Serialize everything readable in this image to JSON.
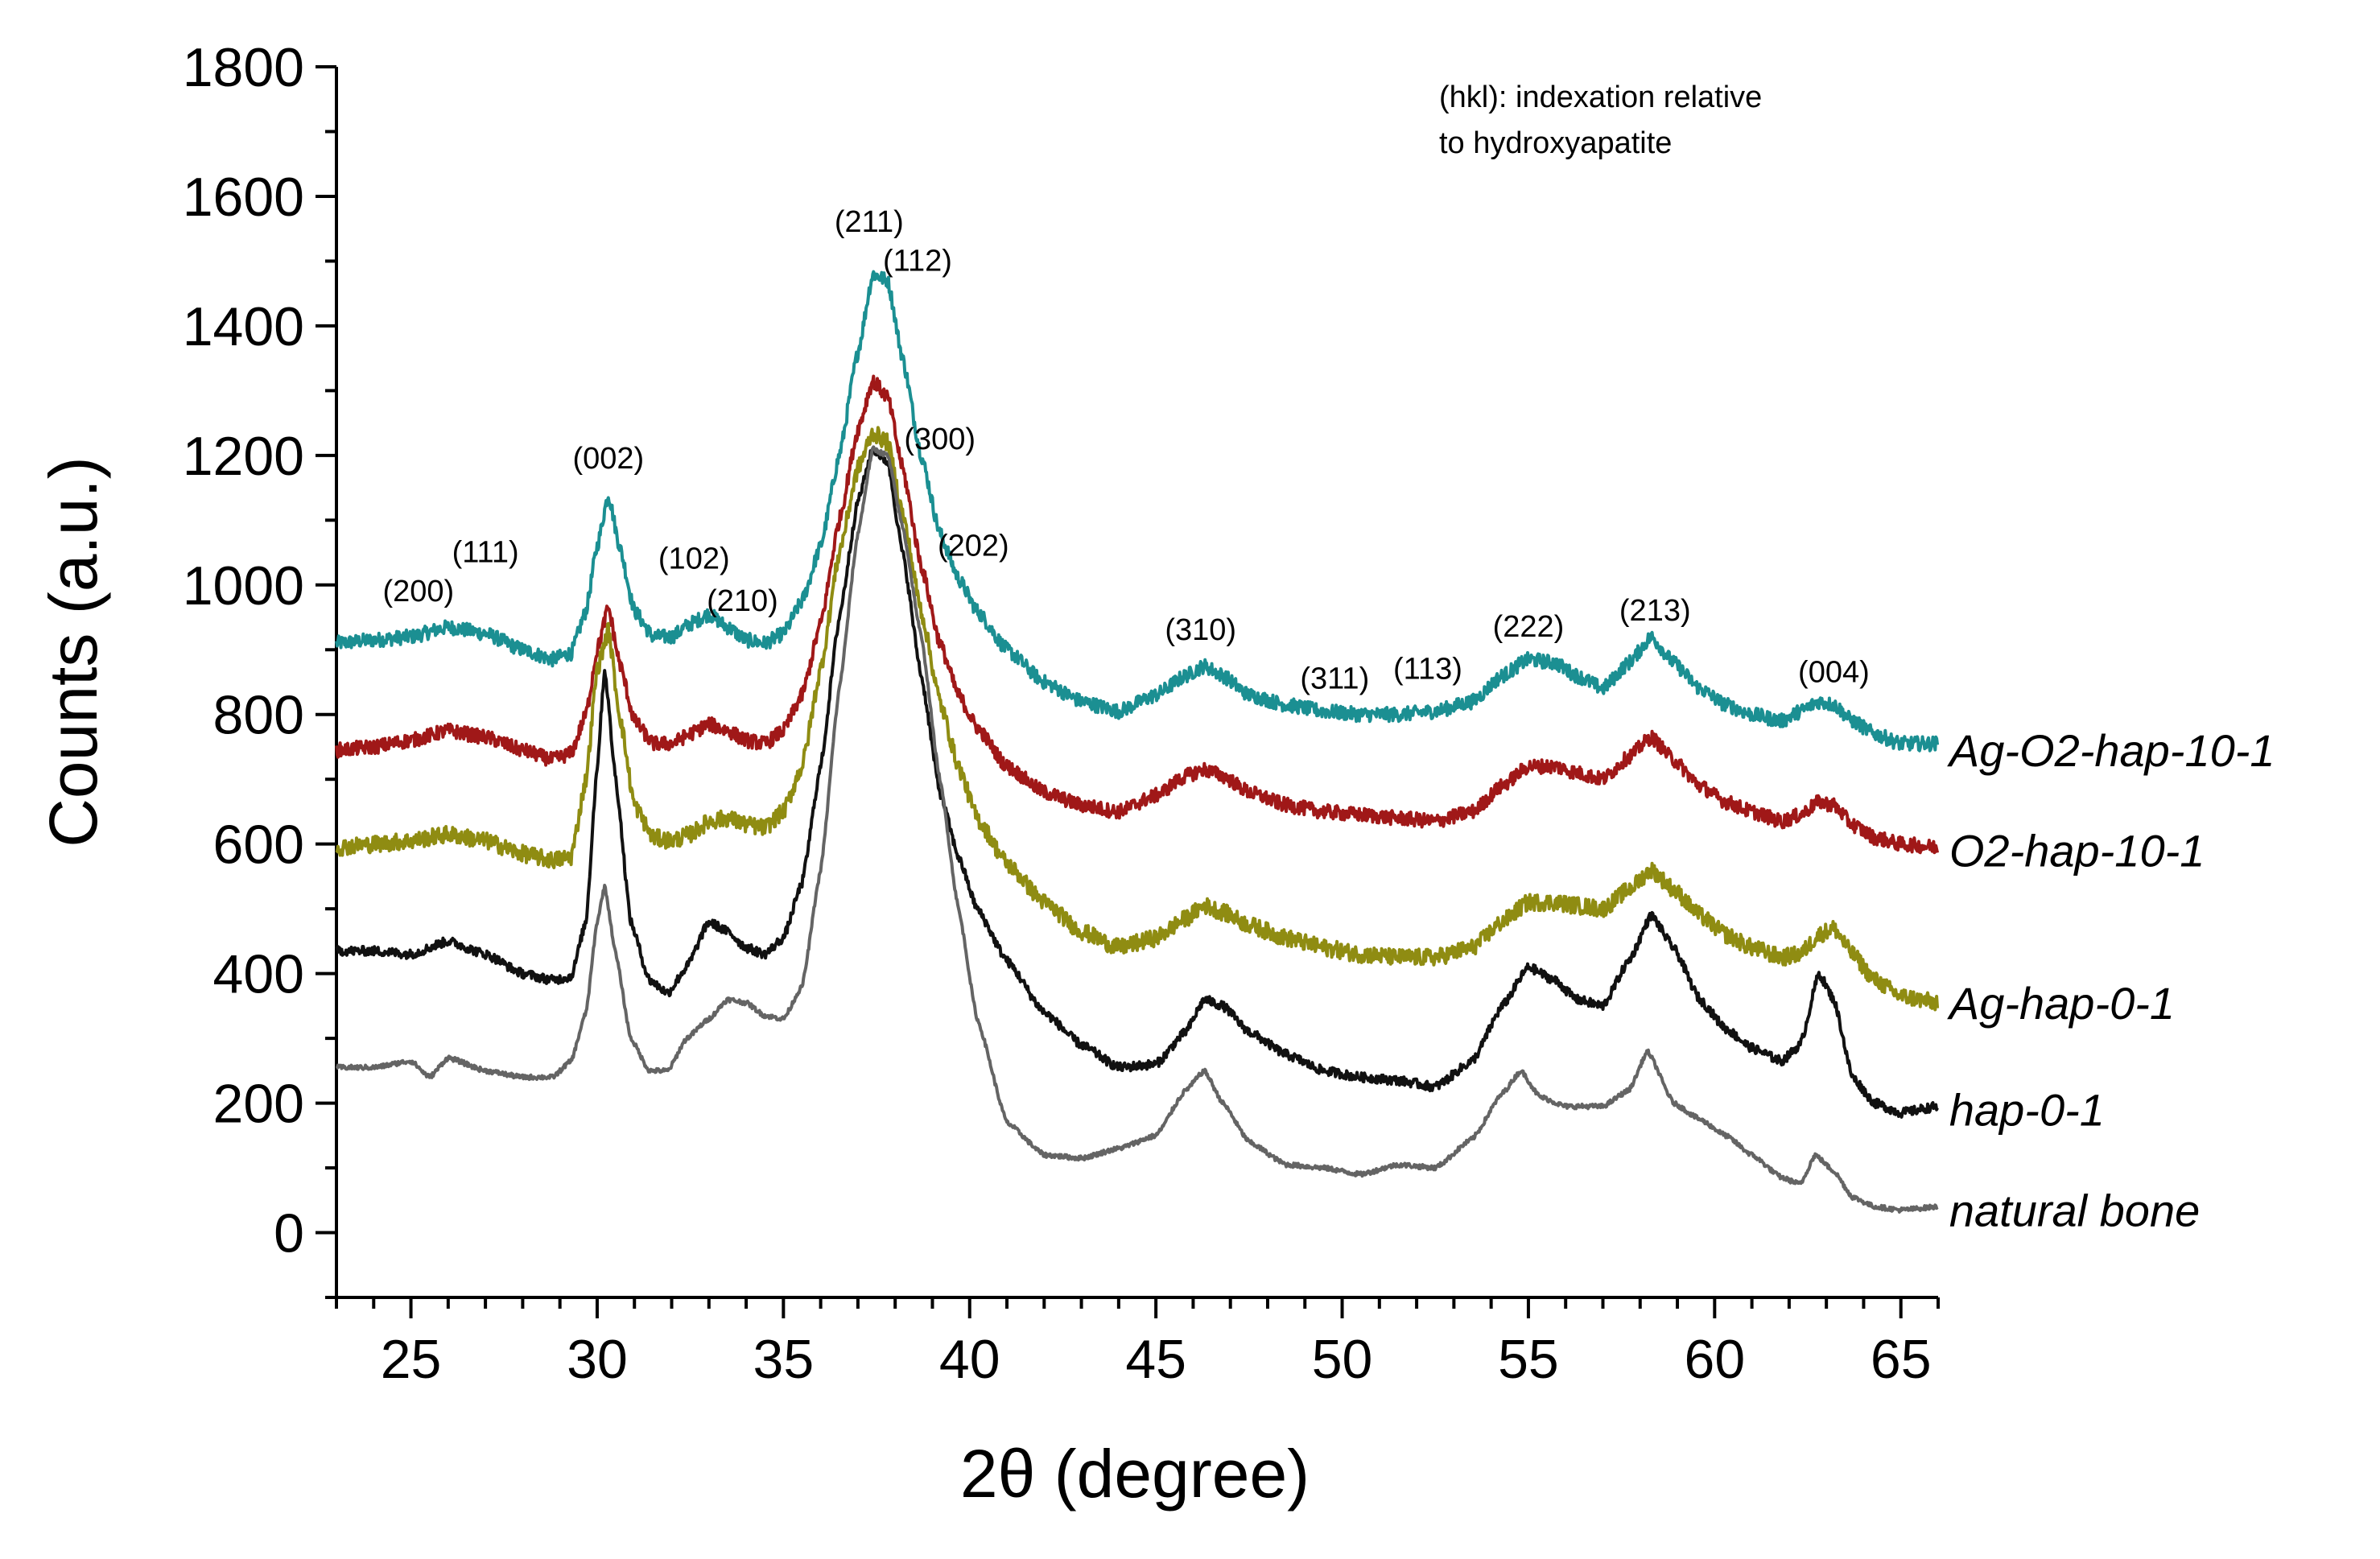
{
  "chart_data": {
    "type": "line",
    "xlabel": "2θ (degree)",
    "ylabel": "Counts (a.u.)",
    "xlim": [
      23,
      66
    ],
    "ylim": [
      -100,
      1800
    ],
    "xticks": [
      "25",
      "30",
      "35",
      "40",
      "45",
      "50",
      "55",
      "60",
      "65"
    ],
    "yticks": [
      "0",
      "200",
      "400",
      "600",
      "800",
      "1000",
      "1200",
      "1400",
      "1600",
      "1800"
    ],
    "annotation": [
      "(hkl): indexation relative",
      "to hydroxyapatite"
    ],
    "peak_labels": [
      {
        "text": "(200)",
        "x": 25.2,
        "y": 975
      },
      {
        "text": "(111)",
        "x": 27.0,
        "y": 1035
      },
      {
        "text": "(002)",
        "x": 30.3,
        "y": 1180
      },
      {
        "text": "(102)",
        "x": 32.6,
        "y": 1025
      },
      {
        "text": "(210)",
        "x": 33.9,
        "y": 960
      },
      {
        "text": "(211)",
        "x": 37.3,
        "y": 1545
      },
      {
        "text": "(112)",
        "x": 38.6,
        "y": 1485
      },
      {
        "text": "(300)",
        "x": 39.2,
        "y": 1210
      },
      {
        "text": "(202)",
        "x": 40.1,
        "y": 1045
      },
      {
        "text": "(310)",
        "x": 46.2,
        "y": 915
      },
      {
        "text": "(311)",
        "x": 49.8,
        "y": 840
      },
      {
        "text": "(113)",
        "x": 52.3,
        "y": 855
      },
      {
        "text": "(222)",
        "x": 55.0,
        "y": 920
      },
      {
        "text": "(213)",
        "x": 58.4,
        "y": 945
      },
      {
        "text": "(004)",
        "x": 63.2,
        "y": 850
      }
    ],
    "series": [
      {
        "name": "Ag-O2-hap-10-1",
        "color": "#1b8f92",
        "label_x": 66.3,
        "label_y": 745,
        "x": [
          23,
          24,
          25,
          26,
          27,
          28,
          28.8,
          29.3,
          29.7,
          30.0,
          30.3,
          30.6,
          31.0,
          31.5,
          32.0,
          32.5,
          33.0,
          33.5,
          34.0,
          34.5,
          35.0,
          35.5,
          36.0,
          36.5,
          37.0,
          37.4,
          37.8,
          38.2,
          38.7,
          39.2,
          39.7,
          40.2,
          41.0,
          42.0,
          43.0,
          44.0,
          45.0,
          45.8,
          46.3,
          46.8,
          47.5,
          48.5,
          49.5,
          50.5,
          51.5,
          52.5,
          53.5,
          54.3,
          55.0,
          55.7,
          56.3,
          57.0,
          57.7,
          58.3,
          58.9,
          59.6,
          60.3,
          61.0,
          61.8,
          62.3,
          62.8,
          63.2,
          63.7,
          64.3,
          65.0,
          66.0
        ],
        "y": [
          910,
          915,
          920,
          935,
          925,
          900,
          885,
          895,
          960,
          1060,
          1140,
          1060,
          960,
          920,
          920,
          940,
          955,
          935,
          915,
          910,
          925,
          975,
          1060,
          1200,
          1360,
          1480,
          1470,
          1350,
          1200,
          1080,
          1010,
          960,
          900,
          850,
          820,
          805,
          830,
          860,
          875,
          860,
          830,
          815,
          805,
          800,
          800,
          805,
          820,
          860,
          885,
          880,
          860,
          840,
          880,
          920,
          880,
          840,
          815,
          800,
          790,
          805,
          820,
          815,
          790,
          770,
          755,
          755
        ]
      },
      {
        "name": "O2-hap-10-1",
        "color": "#a01818",
        "label_x": 66.3,
        "label_y": 590,
        "x": [
          23,
          24,
          25,
          26,
          27,
          28,
          28.8,
          29.3,
          29.7,
          30.0,
          30.3,
          30.6,
          31.0,
          31.5,
          32.0,
          32.5,
          33.0,
          33.5,
          34.0,
          34.5,
          35.0,
          35.5,
          36.0,
          36.5,
          37.0,
          37.4,
          37.8,
          38.2,
          38.7,
          39.2,
          39.7,
          40.2,
          41.0,
          42.0,
          43.0,
          44.0,
          45.0,
          45.8,
          46.3,
          46.8,
          47.5,
          48.5,
          49.5,
          50.5,
          51.5,
          52.5,
          53.5,
          54.3,
          55.0,
          55.7,
          56.3,
          57.0,
          57.7,
          58.3,
          58.9,
          59.6,
          60.3,
          61.0,
          61.8,
          62.3,
          62.8,
          63.2,
          63.7,
          64.3,
          65.0,
          66.0
        ],
        "y": [
          745,
          750,
          760,
          775,
          765,
          745,
          730,
          740,
          800,
          900,
          965,
          880,
          790,
          755,
          755,
          770,
          785,
          775,
          760,
          755,
          775,
          830,
          940,
          1100,
          1240,
          1315,
          1290,
          1180,
          1030,
          910,
          830,
          780,
          720,
          680,
          660,
          650,
          675,
          705,
          715,
          705,
          680,
          660,
          650,
          645,
          640,
          635,
          650,
          690,
          720,
          720,
          710,
          700,
          735,
          765,
          730,
          690,
          665,
          650,
          635,
          645,
          665,
          660,
          630,
          610,
          600,
          595
        ]
      },
      {
        "name": "Ag-hap-0-1",
        "color": "#8f8c12",
        "label_x": 66.3,
        "label_y": 355,
        "x": [
          23,
          24,
          25,
          26,
          27,
          28,
          28.8,
          29.3,
          29.7,
          30.0,
          30.3,
          30.6,
          31.0,
          31.5,
          32.0,
          32.5,
          33.0,
          33.5,
          34.0,
          34.5,
          35.0,
          35.5,
          36.0,
          36.5,
          37.0,
          37.4,
          37.8,
          38.2,
          38.7,
          39.2,
          39.7,
          40.2,
          41.0,
          42.0,
          43.0,
          44.0,
          45.0,
          45.8,
          46.3,
          46.8,
          47.5,
          48.5,
          49.5,
          50.5,
          51.5,
          52.5,
          53.5,
          54.3,
          55.0,
          55.7,
          56.3,
          57.0,
          57.7,
          58.3,
          58.9,
          59.6,
          60.3,
          61.0,
          61.8,
          62.3,
          62.8,
          63.2,
          63.7,
          64.3,
          65.0,
          66.0
        ],
        "y": [
          595,
          600,
          605,
          615,
          605,
          585,
          575,
          580,
          700,
          870,
          930,
          800,
          660,
          610,
          605,
          615,
          635,
          640,
          630,
          625,
          650,
          720,
          870,
          1050,
          1180,
          1235,
          1220,
          1110,
          960,
          820,
          720,
          640,
          570,
          510,
          465,
          440,
          455,
          485,
          505,
          495,
          475,
          455,
          440,
          430,
          425,
          425,
          440,
          480,
          510,
          510,
          505,
          500,
          530,
          560,
          530,
          490,
          460,
          440,
          425,
          430,
          460,
          470,
          430,
          390,
          365,
          355
        ]
      },
      {
        "name": "hap-0-1",
        "color": "#111111",
        "label_x": 66.3,
        "label_y": 190,
        "x": [
          23,
          24,
          25,
          26,
          27,
          28,
          28.8,
          29.3,
          29.7,
          30.0,
          30.2,
          30.5,
          30.9,
          31.4,
          31.9,
          32.4,
          33.0,
          33.5,
          34.0,
          34.5,
          35.0,
          35.5,
          36.0,
          36.5,
          37.0,
          37.4,
          37.8,
          38.2,
          38.7,
          39.2,
          39.7,
          40.2,
          41.0,
          42.0,
          43.0,
          44.0,
          45.0,
          45.8,
          46.3,
          46.8,
          47.5,
          48.5,
          49.5,
          50.5,
          51.5,
          52.5,
          53.5,
          54.3,
          55.0,
          55.7,
          56.3,
          57.0,
          57.7,
          58.3,
          58.9,
          59.6,
          60.3,
          61.0,
          61.8,
          62.3,
          62.8,
          63.2,
          63.7,
          64.3,
          65.0,
          66.0
        ],
        "y": [
          435,
          435,
          430,
          450,
          430,
          400,
          390,
          395,
          480,
          720,
          870,
          700,
          480,
          390,
          370,
          410,
          480,
          465,
          440,
          430,
          455,
          540,
          720,
          950,
          1130,
          1210,
          1190,
          1050,
          860,
          680,
          580,
          500,
          420,
          340,
          290,
          255,
          260,
          310,
          360,
          350,
          310,
          275,
          250,
          240,
          235,
          225,
          265,
          350,
          410,
          390,
          360,
          350,
          420,
          490,
          440,
          360,
          315,
          285,
          265,
          290,
          400,
          360,
          240,
          200,
          185,
          195
        ]
      },
      {
        "name": "natural bone",
        "color": "#646464",
        "label_x": 66.3,
        "label_y": 35,
        "x": [
          23,
          24,
          25,
          25.5,
          26,
          27,
          28,
          28.8,
          29.3,
          29.7,
          30.0,
          30.2,
          30.5,
          30.9,
          31.4,
          31.9,
          32.4,
          33.0,
          33.5,
          34.0,
          34.5,
          35.0,
          35.5,
          36.0,
          36.5,
          37.0,
          37.4,
          37.8,
          38.2,
          38.7,
          39.2,
          39.7,
          40.2,
          41.0,
          42.0,
          43.0,
          44.0,
          45.0,
          45.8,
          46.3,
          46.8,
          47.5,
          48.5,
          49.5,
          50.5,
          51.5,
          52.5,
          53.5,
          54.3,
          54.8,
          55.3,
          56.0,
          57.0,
          57.7,
          58.2,
          58.9,
          59.6,
          60.3,
          61.0,
          61.8,
          62.3,
          62.7,
          63.2,
          63.7,
          64.3,
          65.0,
          66.0
        ],
        "y": [
          255,
          255,
          265,
          240,
          270,
          250,
          240,
          240,
          265,
          340,
          480,
          535,
          430,
          300,
          250,
          250,
          300,
          330,
          360,
          355,
          335,
          330,
          380,
          560,
          840,
          1080,
          1210,
          1200,
          1090,
          920,
          700,
          500,
          330,
          170,
          120,
          115,
          130,
          150,
          220,
          250,
          200,
          140,
          105,
          100,
          90,
          105,
          100,
          145,
          215,
          250,
          210,
          195,
          195,
          220,
          280,
          200,
          175,
          150,
          120,
          85,
          75,
          120,
          95,
          55,
          40,
          35,
          40
        ]
      }
    ]
  }
}
